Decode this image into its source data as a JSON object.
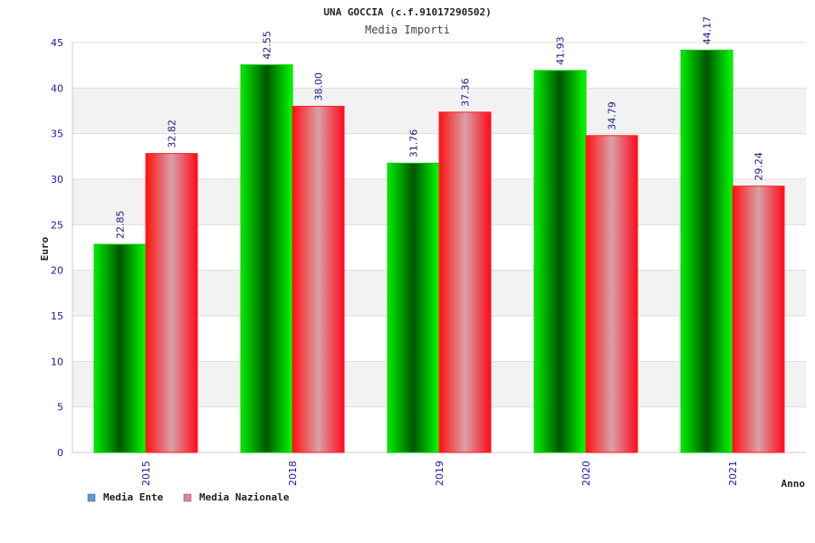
{
  "chart_data": {
    "type": "bar",
    "title": "UNA GOCCIA (c.f.91017290502)",
    "subtitle": "Media Importi",
    "xlabel": "Anno",
    "ylabel": "Euro",
    "categories": [
      "2015",
      "2018",
      "2019",
      "2020",
      "2021"
    ],
    "series": [
      {
        "name": "Media Ente",
        "values": [
          22.85,
          42.55,
          31.76,
          41.93,
          44.17
        ],
        "legend_color": "#5b9bd5"
      },
      {
        "name": "Media Nazionale",
        "values": [
          32.82,
          38.0,
          37.36,
          34.79,
          29.24
        ],
        "legend_color": "#e080b0"
      }
    ],
    "value_labels": [
      [
        "22.85",
        "42.55",
        "31.76",
        "41.93",
        "44.17"
      ],
      [
        "32.82",
        "38.00",
        "37.36",
        "34.79",
        "29.24"
      ]
    ],
    "ylim": [
      0,
      45
    ],
    "yticks": [
      0,
      5,
      10,
      15,
      20,
      25,
      30,
      35,
      40,
      45
    ],
    "grid": true,
    "legend_position": "bottom-left"
  }
}
